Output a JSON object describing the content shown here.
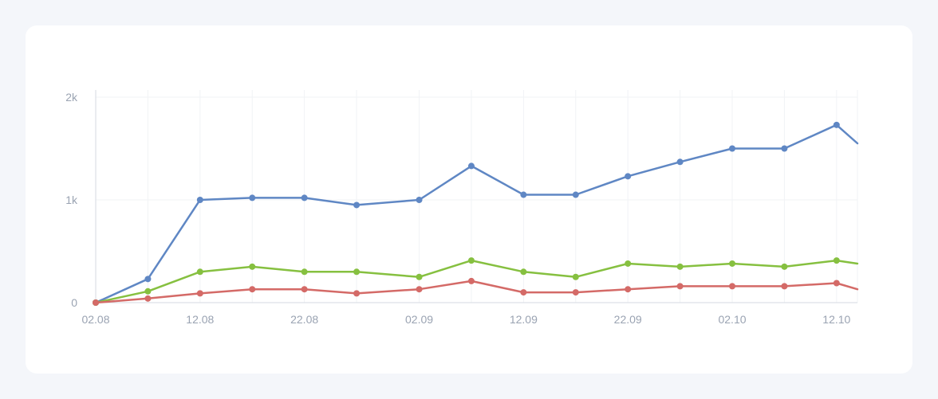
{
  "chart_data": {
    "type": "line",
    "title": "",
    "xlabel": "",
    "ylabel": "",
    "ylim": [
      0,
      2000
    ],
    "grid": true,
    "legend": "none",
    "y_ticks": [
      {
        "value": 0,
        "label": "0"
      },
      {
        "value": 1000,
        "label": "1k"
      },
      {
        "value": 2000,
        "label": "2k"
      }
    ],
    "x_ticks": [
      {
        "value": "2024-08-02",
        "label": "02.08"
      },
      {
        "value": "2024-08-12",
        "label": "12.08"
      },
      {
        "value": "2024-08-22",
        "label": "22.08"
      },
      {
        "value": "2024-09-02",
        "label": "02.09"
      },
      {
        "value": "2024-09-12",
        "label": "12.09"
      },
      {
        "value": "2024-09-22",
        "label": "22.09"
      },
      {
        "value": "2024-10-02",
        "label": "02.10"
      },
      {
        "value": "2024-10-12",
        "label": "12.10"
      }
    ],
    "x": [
      "2024-08-02",
      "2024-08-07",
      "2024-08-12",
      "2024-08-17",
      "2024-08-22",
      "2024-08-27",
      "2024-09-02",
      "2024-09-07",
      "2024-09-12",
      "2024-09-17",
      "2024-09-22",
      "2024-09-27",
      "2024-10-02",
      "2024-10-07",
      "2024-10-12",
      "2024-10-14"
    ],
    "series": [
      {
        "color": "#5f87c4",
        "values": [
          0,
          230,
          1000,
          1020,
          1020,
          950,
          1000,
          1330,
          1050,
          1050,
          1230,
          1370,
          1500,
          1500,
          1730,
          1550
        ]
      },
      {
        "color": "#86c040",
        "values": [
          0,
          110,
          300,
          350,
          300,
          300,
          250,
          410,
          300,
          250,
          380,
          350,
          380,
          350,
          410,
          380
        ]
      },
      {
        "color": "#d46a67",
        "values": [
          0,
          40,
          90,
          130,
          130,
          90,
          130,
          210,
          100,
          100,
          130,
          160,
          160,
          160,
          190,
          130
        ]
      }
    ]
  }
}
